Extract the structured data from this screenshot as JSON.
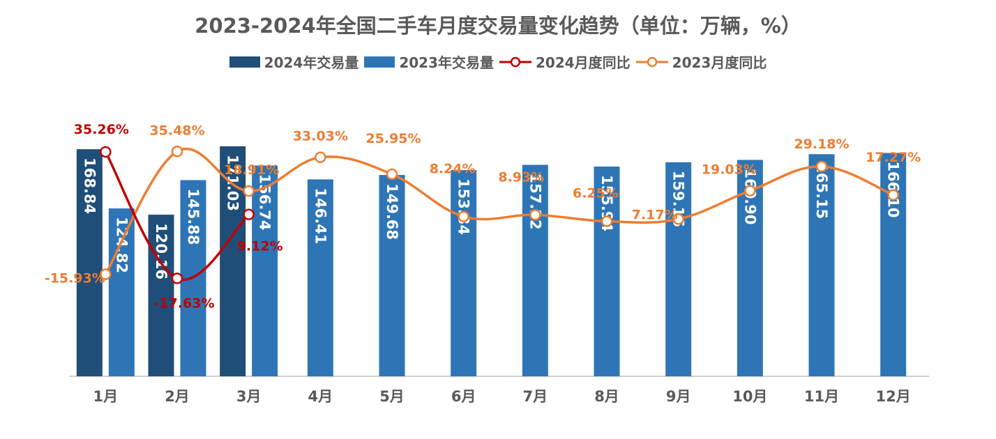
{
  "chart_data": {
    "type": "bar",
    "title": "2023-2024年全国二手车月度交易量变化趋势（单位：万辆，%）",
    "categories": [
      "1月",
      "2月",
      "3月",
      "4月",
      "5月",
      "6月",
      "7月",
      "8月",
      "9月",
      "10月",
      "11月",
      "12月"
    ],
    "series": [
      {
        "name": "2024年交易量",
        "type": "bar",
        "color": "#1f4e79",
        "values": [
          168.84,
          120.16,
          171.03,
          null,
          null,
          null,
          null,
          null,
          null,
          null,
          null,
          null
        ],
        "labels": [
          "168.84",
          "120.16",
          "171.03"
        ]
      },
      {
        "name": "2023年交易量",
        "type": "bar",
        "color": "#2e75b6",
        "values": [
          124.82,
          145.88,
          156.74,
          146.41,
          149.68,
          153.34,
          157.22,
          155.94,
          159.16,
          160.9,
          165.15,
          166.1
        ],
        "labels": [
          "124.82",
          "145.88",
          "156.74",
          "146.41",
          "149.68",
          "153.34",
          "157.22",
          "155.94",
          "159.16",
          "160.90",
          "165.15",
          "166.10"
        ]
      },
      {
        "name": "2024月度同比",
        "type": "line",
        "color": "#c00000",
        "values": [
          35.26,
          -17.63,
          9.12,
          null,
          null,
          null,
          null,
          null,
          null,
          null,
          null,
          null
        ],
        "labels": [
          "35.26%",
          "-17.63%",
          "9.12%"
        ]
      },
      {
        "name": "2023月度同比",
        "type": "line",
        "color": "#ed7d31",
        "values": [
          -15.93,
          35.48,
          18.91,
          33.03,
          25.95,
          8.24,
          8.93,
          6.25,
          7.17,
          19.03,
          29.18,
          17.27
        ],
        "labels": [
          "-15.93%",
          "35.48%",
          "18.91%",
          "33.03%",
          "25.95%",
          "8.24%",
          "8.93%",
          "6.25%",
          "7.17%",
          "19.03%",
          "29.18%",
          "17.27%"
        ]
      }
    ],
    "legend_position": "top",
    "grid": false
  }
}
